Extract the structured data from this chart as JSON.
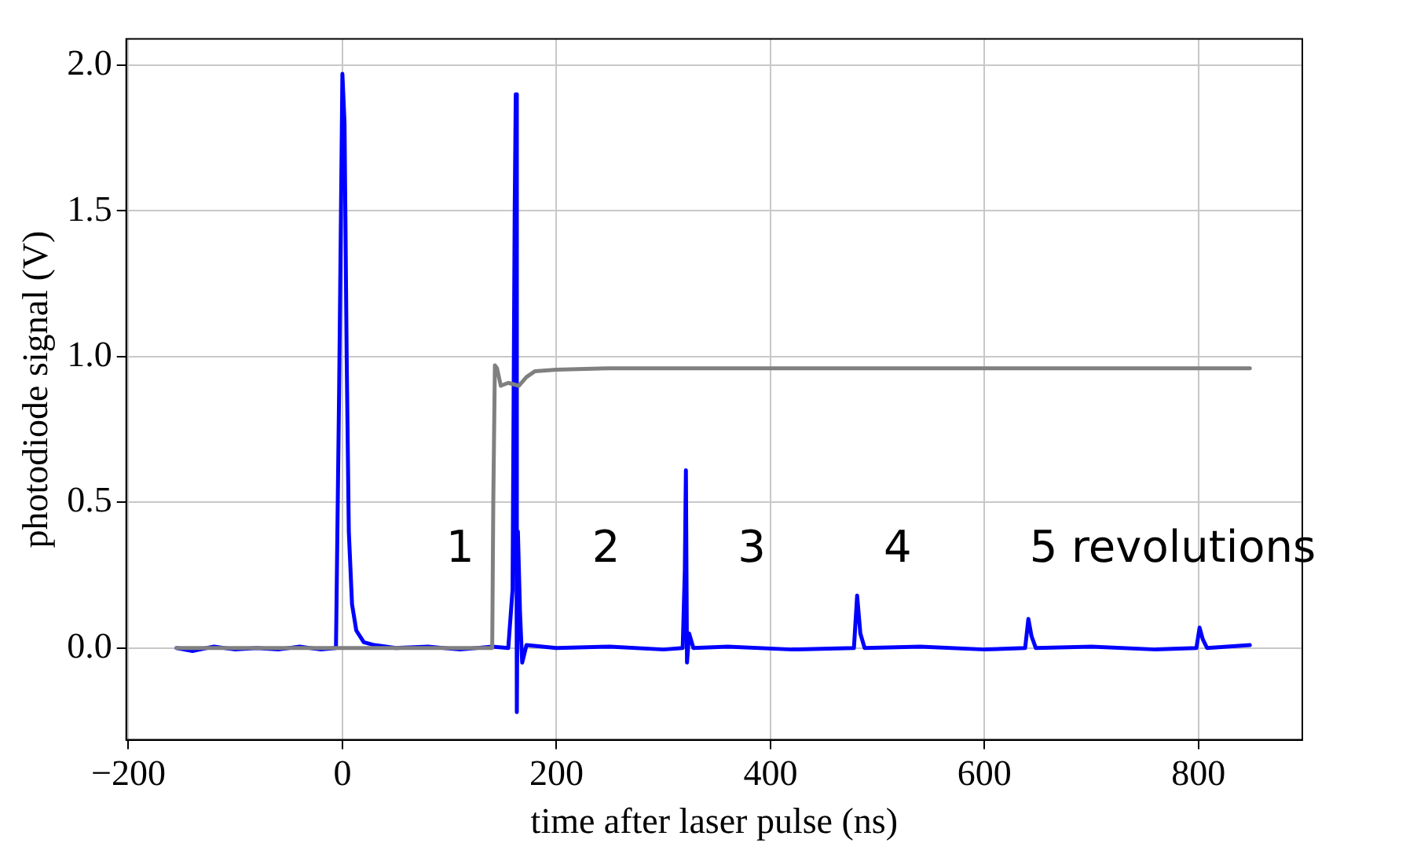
{
  "chart_data": {
    "type": "line",
    "xlabel": "time after laser pulse (ns)",
    "ylabel": "photodiode signal (V)",
    "xlim": [
      -202,
      897
    ],
    "ylim": [
      -0.315,
      2.09
    ],
    "xticks": [
      {
        "value": -200,
        "label": "−200"
      },
      0,
      200,
      400,
      600,
      800
    ],
    "yticks": [
      {
        "value": 0,
        "label": "0.0"
      },
      {
        "value": 0.5,
        "label": "0.5"
      },
      {
        "value": 1,
        "label": "1.0"
      },
      {
        "value": 1.5,
        "label": "1.5"
      },
      {
        "value": 2,
        "label": "2.0"
      }
    ],
    "grid": true,
    "legend": false,
    "marker": "none",
    "line_style": "solid",
    "series": [
      {
        "color": "#808080",
        "x": [
          -155,
          0,
          140,
          141,
          142.5,
          144.5,
          148,
          155,
          165,
          172,
          180,
          200,
          250,
          400,
          600,
          848
        ],
        "values": [
          0,
          0,
          0,
          0.5,
          0.97,
          0.96,
          0.9,
          0.91,
          0.9,
          0.93,
          0.95,
          0.955,
          0.96,
          0.96,
          0.96,
          0.96
        ]
      },
      {
        "color": "#0000ff",
        "x": [
          -155,
          -140,
          -120,
          -100,
          -80,
          -60,
          -40,
          -20,
          -6,
          -3,
          0,
          2,
          4,
          6,
          9,
          13,
          20,
          30,
          50,
          80,
          110,
          140,
          155,
          159,
          161,
          162,
          163,
          164,
          166,
          168,
          172,
          200,
          250,
          300,
          318,
          320,
          321,
          322,
          324,
          328,
          360,
          420,
          478,
          481,
          484,
          488,
          540,
          600,
          638,
          641,
          644,
          648,
          700,
          760,
          798,
          801,
          804,
          808,
          848
        ],
        "values": [
          0,
          -0.01,
          0.005,
          -0.005,
          0,
          -0.005,
          0.005,
          -0.005,
          0,
          0.9,
          1.97,
          1.8,
          1.0,
          0.4,
          0.15,
          0.06,
          0.02,
          0.01,
          0,
          0.005,
          -0.005,
          0.005,
          0,
          0.2,
          1.5,
          1.9,
          -0.22,
          0.4,
          0.12,
          -0.05,
          0.01,
          0,
          0.005,
          -0.005,
          0,
          0.27,
          0.61,
          -0.05,
          0.05,
          0,
          0.005,
          -0.005,
          0,
          0.18,
          0.05,
          0,
          0.005,
          -0.005,
          0,
          0.1,
          0.04,
          0,
          0.005,
          -0.005,
          0,
          0.07,
          0.03,
          0,
          0.01
        ]
      }
    ],
    "annotations": [
      "1",
      "2",
      "3",
      "4",
      "5 revolutions"
    ]
  }
}
